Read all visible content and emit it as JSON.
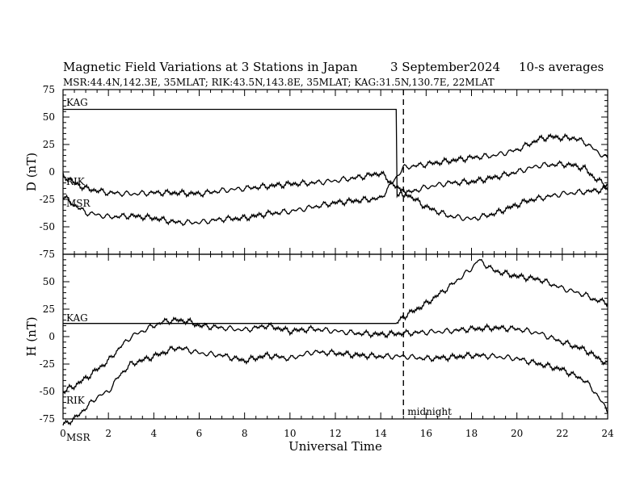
{
  "chart_data": {
    "type": "line",
    "title": "Magnetic Field Variations at 3 Stations in Japan",
    "date": "3   September2024",
    "averaging": "10-s averages",
    "subtitle": "MSR:44.4N,142.3E, 35MLAT;  RIK:43.5N,143.8E, 35MLAT;  KAG:31.5N,130.7E, 22MLAT",
    "xlabel": "Universal Time",
    "xlim": [
      0,
      24
    ],
    "xticks": [
      "0",
      "2",
      "4",
      "6",
      "8",
      "10",
      "12",
      "14",
      "16",
      "18",
      "20",
      "22",
      "24"
    ],
    "annotation": {
      "text": "midnight",
      "x": 15
    },
    "grid": false,
    "panels": [
      {
        "ylabel": "D (nT)",
        "ylim": [
          -75,
          75
        ],
        "yticks": [
          "75",
          "50",
          "25",
          "0",
          "-25",
          "-50",
          "-75"
        ],
        "series": [
          {
            "name": "KAG",
            "x": [
              0,
              14.7,
              14.7,
              15,
              15.5,
              16,
              17,
              18,
              19,
              20,
              20.5,
              21,
              21.5,
              22,
              22.5,
              23,
              23.5,
              24
            ],
            "y": [
              57,
              57,
              -20,
              -18,
              -25,
              -32,
              -40,
              -43,
              -38,
              -30,
              -26,
              -24,
              -22,
              -20,
              -19,
              -18,
              -17,
              -15
            ]
          },
          {
            "name": "RIK",
            "x": [
              0,
              0.5,
              1,
              2,
              3,
              4,
              5,
              6,
              7,
              8,
              9,
              10,
              11,
              12,
              13,
              14,
              15,
              16,
              17,
              18,
              19,
              20,
              21,
              22,
              22.5,
              23,
              23.5,
              24
            ],
            "y": [
              -3,
              -10,
              -15,
              -19,
              -20,
              -19,
              -19,
              -20,
              -17,
              -15,
              -13,
              -11,
              -10,
              -8,
              -5,
              -1,
              -20,
              -14,
              -10,
              -9,
              -5,
              0,
              6,
              7,
              6,
              3,
              -7,
              -12
            ]
          },
          {
            "name": "MSR",
            "x": [
              0,
              0.5,
              1,
              1.5,
              2,
              3,
              4,
              5,
              6,
              7,
              8,
              9,
              10,
              11,
              12,
              13,
              14,
              15,
              16,
              17,
              18,
              19,
              20,
              20.5,
              21,
              21.5,
              22,
              22.5,
              23,
              23.5,
              24
            ],
            "y": [
              -22,
              -30,
              -37,
              -39,
              -41,
              -40,
              -42,
              -46,
              -46,
              -43,
              -42,
              -38,
              -36,
              -32,
              -28,
              -26,
              -24,
              4,
              7,
              10,
              13,
              15,
              20,
              25,
              30,
              32,
              31,
              31,
              27,
              19,
              12
            ]
          }
        ]
      },
      {
        "ylabel": "H (nT)",
        "ylim": [
          -75,
          75
        ],
        "yticks": [
          "75",
          "50",
          "25",
          "0",
          "-25",
          "-50",
          "-75"
        ],
        "series": [
          {
            "name": "KAG",
            "x": [
              0,
              14.7,
              15,
              16,
              17,
              18,
              18.3,
              19,
              20,
              21,
              22,
              23,
              23.5,
              24
            ],
            "y": [
              12,
              12,
              18,
              30,
              45,
              62,
              70,
              60,
              55,
              52,
              44,
              38,
              33,
              31
            ]
          },
          {
            "name": "RIK",
            "x": [
              0,
              0.5,
              1,
              1.5,
              2,
              2.5,
              3,
              4,
              4.5,
              5,
              5.5,
              6,
              7,
              8,
              9,
              10,
              11,
              12,
              13,
              14,
              15,
              16,
              17,
              18,
              19,
              20,
              21,
              22,
              23,
              24
            ],
            "y": [
              -50,
              -45,
              -38,
              -30,
              -22,
              -10,
              0,
              10,
              14,
              15,
              14,
              10,
              8,
              6,
              10,
              5,
              7,
              5,
              3,
              2,
              3,
              4,
              5,
              7,
              8,
              7,
              3,
              -5,
              -12,
              -25
            ]
          },
          {
            "name": "MSR",
            "x": [
              0,
              0.5,
              1,
              1.5,
              2,
              2.5,
              3,
              4,
              5,
              5.5,
              6,
              7,
              8,
              9,
              10,
              11,
              12,
              13,
              14,
              15,
              16,
              17,
              18,
              19,
              20,
              21,
              22,
              23,
              23.5,
              24
            ],
            "y": [
              -80,
              -75,
              -65,
              -55,
              -50,
              -35,
              -25,
              -18,
              -10,
              -12,
              -15,
              -17,
              -22,
              -17,
              -20,
              -14,
              -15,
              -17,
              -18,
              -18,
              -20,
              -19,
              -17,
              -18,
              -20,
              -25,
              -30,
              -40,
              -52,
              -68
            ]
          }
        ]
      }
    ]
  }
}
